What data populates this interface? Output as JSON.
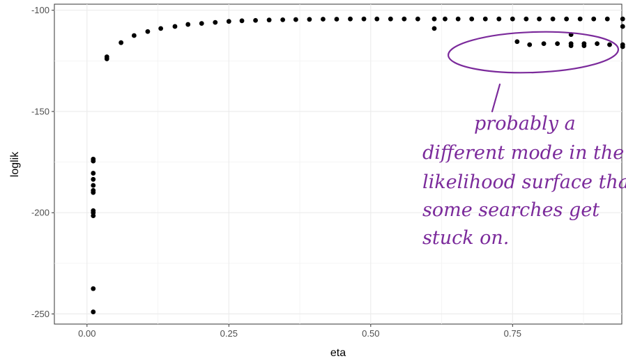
{
  "chart_data": {
    "type": "scatter",
    "title": "",
    "xlabel": "eta",
    "ylabel": "loglik",
    "xlim": [
      -0.0575,
      0.9425
    ],
    "ylim": [
      -255,
      -97
    ],
    "xticks": [
      0.0,
      0.25,
      0.5,
      0.75
    ],
    "xtick_labels": [
      "0.00",
      "0.25",
      "0.50",
      "0.75"
    ],
    "yticks": [
      -100,
      -150,
      -200,
      -250
    ],
    "ytick_labels": [
      "-100",
      "-150",
      "-200",
      "-250"
    ],
    "grid": true,
    "legend": "none",
    "point_color": "#000000",
    "points": [
      {
        "x": 0.011,
        "y": -173.5
      },
      {
        "x": 0.011,
        "y": -174.5
      },
      {
        "x": 0.011,
        "y": -180.5
      },
      {
        "x": 0.011,
        "y": -183.5
      },
      {
        "x": 0.011,
        "y": -186.5
      },
      {
        "x": 0.011,
        "y": -189.0
      },
      {
        "x": 0.011,
        "y": -190.0
      },
      {
        "x": 0.011,
        "y": -199.0
      },
      {
        "x": 0.011,
        "y": -200.0
      },
      {
        "x": 0.011,
        "y": -201.5
      },
      {
        "x": 0.011,
        "y": -237.5
      },
      {
        "x": 0.011,
        "y": -249.0
      },
      {
        "x": 0.035,
        "y": -123.0
      },
      {
        "x": 0.035,
        "y": -124.0
      },
      {
        "x": 0.06,
        "y": -116.0
      },
      {
        "x": 0.083,
        "y": -112.5
      },
      {
        "x": 0.107,
        "y": -110.5
      },
      {
        "x": 0.13,
        "y": -109.0
      },
      {
        "x": 0.155,
        "y": -108.0
      },
      {
        "x": 0.178,
        "y": -107.0
      },
      {
        "x": 0.202,
        "y": -106.5
      },
      {
        "x": 0.226,
        "y": -106.0
      },
      {
        "x": 0.25,
        "y": -105.5
      },
      {
        "x": 0.273,
        "y": -105.2
      },
      {
        "x": 0.297,
        "y": -105.0
      },
      {
        "x": 0.321,
        "y": -104.8
      },
      {
        "x": 0.345,
        "y": -104.7
      },
      {
        "x": 0.368,
        "y": -104.6
      },
      {
        "x": 0.392,
        "y": -104.5
      },
      {
        "x": 0.416,
        "y": -104.4
      },
      {
        "x": 0.44,
        "y": -104.4
      },
      {
        "x": 0.464,
        "y": -104.3
      },
      {
        "x": 0.488,
        "y": -104.3
      },
      {
        "x": 0.511,
        "y": -104.3
      },
      {
        "x": 0.535,
        "y": -104.3
      },
      {
        "x": 0.559,
        "y": -104.3
      },
      {
        "x": 0.583,
        "y": -104.3
      },
      {
        "x": 0.612,
        "y": -104.3
      },
      {
        "x": 0.612,
        "y": -109.0
      },
      {
        "x": 0.631,
        "y": -104.3
      },
      {
        "x": 0.654,
        "y": -104.3
      },
      {
        "x": 0.678,
        "y": -104.3
      },
      {
        "x": 0.702,
        "y": -104.3
      },
      {
        "x": 0.726,
        "y": -104.3
      },
      {
        "x": 0.75,
        "y": -104.3
      },
      {
        "x": 0.758,
        "y": -115.5
      },
      {
        "x": 0.774,
        "y": -104.3
      },
      {
        "x": 0.78,
        "y": -117.0
      },
      {
        "x": 0.797,
        "y": -104.3
      },
      {
        "x": 0.805,
        "y": -116.5
      },
      {
        "x": 0.821,
        "y": -104.3
      },
      {
        "x": 0.829,
        "y": -116.5
      },
      {
        "x": 0.845,
        "y": -104.3
      },
      {
        "x": 0.853,
        "y": -112.0
      },
      {
        "x": 0.853,
        "y": -116.5
      },
      {
        "x": 0.853,
        "y": -117.5
      },
      {
        "x": 0.869,
        "y": -104.3
      },
      {
        "x": 0.876,
        "y": -116.5
      },
      {
        "x": 0.876,
        "y": -117.5
      },
      {
        "x": 0.893,
        "y": -104.3
      },
      {
        "x": 0.899,
        "y": -116.5
      },
      {
        "x": 0.917,
        "y": -104.3
      },
      {
        "x": 0.921,
        "y": -117.0
      },
      {
        "x": 0.944,
        "y": -104.3
      },
      {
        "x": 0.944,
        "y": -108.0
      },
      {
        "x": 0.944,
        "y": -117.0
      },
      {
        "x": 0.944,
        "y": -118.0
      }
    ]
  },
  "annotation": {
    "color": "#7b2a9b",
    "lines": [
      "probably a",
      "different mode in the",
      "likelihood surface that",
      "some searches get",
      "stuck on."
    ]
  }
}
